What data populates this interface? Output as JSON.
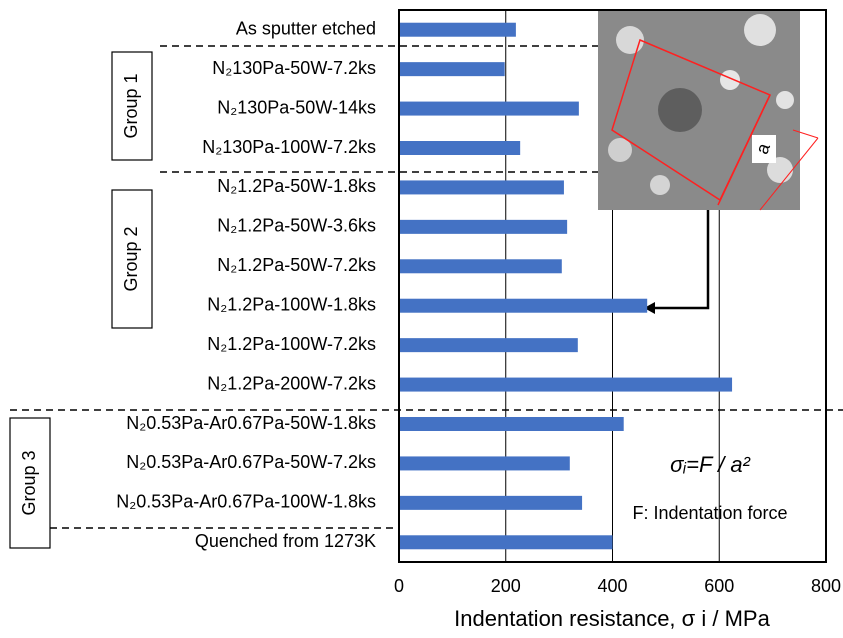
{
  "chart_data": {
    "type": "barh",
    "categories": [
      "As sputter etched",
      "N₂130Pa-50W-7.2ks",
      "N₂130Pa-50W-14ks",
      "N₂130Pa-100W-7.2ks",
      "N₂1.2Pa-50W-1.8ks",
      "N₂1.2Pa-50W-3.6ks",
      "N₂1.2Pa-50W-7.2ks",
      "N₂1.2Pa-100W-1.8ks",
      "N₂1.2Pa-100W-7.2ks",
      "N₂1.2Pa-200W-7.2ks",
      "N₂0.53Pa-Ar0.67Pa-50W-1.8ks",
      "N₂0.53Pa-Ar0.67Pa-50W-7.2ks",
      "N₂0.53Pa-Ar0.67Pa-100W-1.8ks",
      "Quenched from 1273K"
    ],
    "values": [
      219,
      198,
      337,
      227,
      309,
      315,
      305,
      465,
      335,
      624,
      421,
      320,
      343,
      400
    ],
    "color": "#4472c4",
    "xlim": [
      0,
      800
    ],
    "xticks": [
      0,
      200,
      400,
      600,
      800
    ],
    "grid": true,
    "x_label": "Indentation resistance, σ i / MPa",
    "groups": [
      "Group 1",
      "Group 2",
      "Group 3"
    ],
    "annotations": {
      "formula": "σᵢ=F / a²",
      "force": "F: Indentation force",
      "inset_label": "a"
    }
  }
}
